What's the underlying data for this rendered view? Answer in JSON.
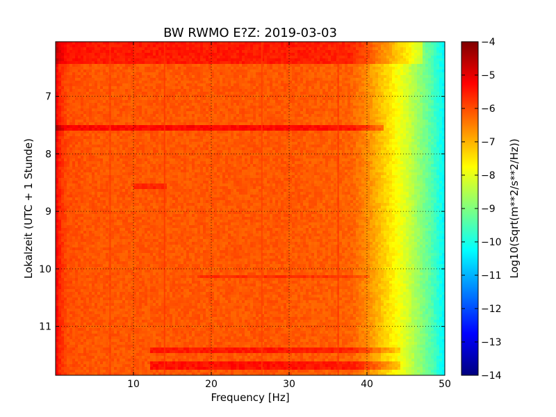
{
  "chart_data": {
    "type": "heatmap",
    "title": "BW RWMO E?Z: 2019-03-03",
    "xlabel": "Frequency [Hz]",
    "ylabel": "Lokalzeit (UTC + 1 Stunde)",
    "xlim": [
      0,
      50
    ],
    "ylim": [
      11.85,
      6.05
    ],
    "y_inverted": true,
    "xticks": [
      10,
      20,
      30,
      40,
      50
    ],
    "xtick_labels": [
      "10",
      "20",
      "30",
      "40",
      "50"
    ],
    "yticks": [
      7,
      8,
      9,
      10,
      11
    ],
    "ytick_labels": [
      "7",
      "8",
      "9",
      "10",
      "11"
    ],
    "grid": true,
    "colormap": "jet",
    "colorbar": {
      "label": "Log10(Sqrt(m**2/s**2/Hz))",
      "range": [
        -14,
        -4
      ],
      "ticks": [
        -4,
        -5,
        -6,
        -7,
        -8,
        -9,
        -10,
        -11,
        -12,
        -13,
        -14
      ],
      "tick_labels": [
        "−4",
        "−5",
        "−6",
        "−7",
        "−8",
        "−9",
        "−10",
        "−11",
        "−12",
        "−13",
        "−14"
      ]
    },
    "frequency_profile": {
      "freq": [
        0,
        0.5,
        1.5,
        5,
        10,
        20,
        30,
        38,
        40,
        42,
        43,
        44,
        45,
        46,
        47,
        48,
        49,
        50
      ],
      "level": [
        -5.2,
        -5.6,
        -6.0,
        -6.1,
        -6.1,
        -6.1,
        -6.1,
        -6.2,
        -6.6,
        -7.2,
        -7.5,
        -7.8,
        -8.1,
        -8.5,
        -8.9,
        -9.3,
        -9.8,
        -10.3
      ]
    },
    "event_bands": [
      {
        "t_start": 6.05,
        "t_end": 6.38,
        "f_start": 0,
        "f_end": 47,
        "delta": 0.6
      },
      {
        "t_start": 7.5,
        "t_end": 7.57,
        "f_start": 0,
        "f_end": 42,
        "delta": 0.8
      },
      {
        "t_start": 8.52,
        "t_end": 8.55,
        "f_start": 10,
        "f_end": 14,
        "delta": 0.5
      },
      {
        "t_start": 10.1,
        "t_end": 10.13,
        "f_start": 18,
        "f_end": 40,
        "delta": 0.4
      },
      {
        "t_start": 11.35,
        "t_end": 11.42,
        "f_start": 12,
        "f_end": 44,
        "delta": 0.6
      },
      {
        "t_start": 11.62,
        "t_end": 11.72,
        "f_start": 12,
        "f_end": 44,
        "delta": 0.7
      }
    ],
    "vertical_lines": [
      {
        "freq": 7.0,
        "delta": 0.3
      },
      {
        "freq": 14.0,
        "delta": 0.35
      },
      {
        "freq": 26.5,
        "delta": 0.25
      },
      {
        "freq": 36.3,
        "delta": 0.5
      }
    ]
  }
}
